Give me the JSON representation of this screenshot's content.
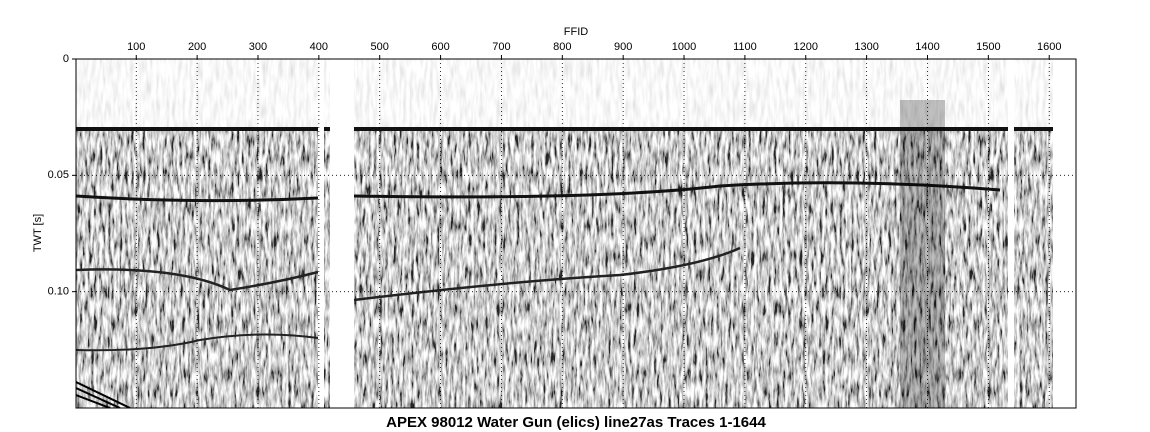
{
  "chart_data": {
    "type": "seismic",
    "title": "APEX 98012 Water Gun (elics) line27as Traces 1-1644",
    "xlabel": "FFID",
    "ylabel": "TWT [s]",
    "xlim": [
      1,
      1644
    ],
    "ylim": [
      0,
      0.15
    ],
    "xticks": [
      100,
      200,
      300,
      400,
      500,
      600,
      700,
      800,
      900,
      1000,
      1100,
      1200,
      1300,
      1400,
      1500,
      1600
    ],
    "yticks": [
      0,
      0.05,
      {
        "value": 0.1,
        "label": "0.10"
      }
    ],
    "grid": true
  }
}
